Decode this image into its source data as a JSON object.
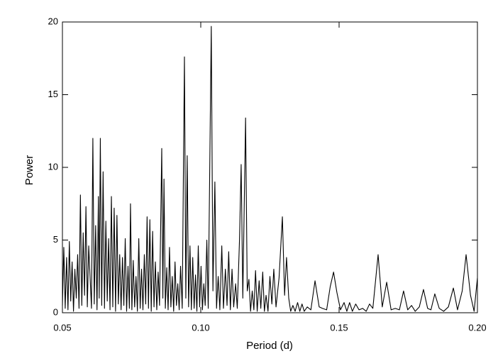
{
  "chart_data": {
    "type": "line",
    "xlabel": "Period (d)",
    "ylabel": "Power",
    "xlim": [
      0.05,
      0.2
    ],
    "xticks": [
      0.05,
      {
        "value": 0.1,
        "label": "0.10"
      },
      0.15,
      {
        "value": 0.2,
        "label": "0.20"
      }
    ],
    "ylim": [
      0,
      20
    ],
    "yticks": [
      0,
      5,
      10,
      15,
      20
    ],
    "x": [
      0.05,
      0.0505,
      0.051,
      0.0515,
      0.052,
      0.0525,
      0.053,
      0.0535,
      0.054,
      0.0545,
      0.055,
      0.0555,
      0.056,
      0.0565,
      0.057,
      0.0575,
      0.058,
      0.0585,
      0.059,
      0.0595,
      0.0605,
      0.061,
      0.0615,
      0.062,
      0.0625,
      0.063,
      0.0633,
      0.0637,
      0.0642,
      0.0647,
      0.0652,
      0.0657,
      0.0662,
      0.0667,
      0.0672,
      0.0677,
      0.0682,
      0.0687,
      0.0692,
      0.0697,
      0.0702,
      0.0707,
      0.0712,
      0.0717,
      0.0722,
      0.0727,
      0.0732,
      0.0737,
      0.0742,
      0.0746,
      0.0751,
      0.0756,
      0.0761,
      0.0766,
      0.0771,
      0.0776,
      0.0781,
      0.0786,
      0.0791,
      0.0796,
      0.0801,
      0.0806,
      0.0811,
      0.0816,
      0.0821,
      0.0826,
      0.0831,
      0.0836,
      0.0841,
      0.0846,
      0.0851,
      0.0859,
      0.0863,
      0.0867,
      0.0872,
      0.0877,
      0.0882,
      0.0887,
      0.0892,
      0.0897,
      0.0902,
      0.0907,
      0.0912,
      0.0917,
      0.0922,
      0.0927,
      0.0933,
      0.0941,
      0.0946,
      0.0951,
      0.0956,
      0.0961,
      0.0966,
      0.0971,
      0.0976,
      0.0981,
      0.0986,
      0.0991,
      0.0996,
      0.1001,
      0.1006,
      0.1011,
      0.1016,
      0.1022,
      0.1027,
      0.1038,
      0.1044,
      0.1051,
      0.1057,
      0.1063,
      0.1069,
      0.1076,
      0.1082,
      0.1089,
      0.1095,
      0.1101,
      0.1107,
      0.1113,
      0.1119,
      0.1126,
      0.1132,
      0.114,
      0.1146,
      0.1152,
      0.1162,
      0.1168,
      0.1174,
      0.118,
      0.1186,
      0.1192,
      0.1198,
      0.1204,
      0.1211,
      0.1217,
      0.1224,
      0.123,
      0.1236,
      0.1243,
      0.125,
      0.1257,
      0.1264,
      0.1272,
      0.1283,
      0.1295,
      0.1303,
      0.131,
      0.1318,
      0.1325,
      0.1333,
      0.1341,
      0.135,
      0.1358,
      0.1366,
      0.1374,
      0.1385,
      0.1398,
      0.1413,
      0.1428,
      0.144,
      0.1455,
      0.1468,
      0.148,
      0.1492,
      0.1505,
      0.1518,
      0.1528,
      0.1538,
      0.1548,
      0.156,
      0.1572,
      0.1585,
      0.1598,
      0.161,
      0.1622,
      0.1641,
      0.1656,
      0.1672,
      0.1688,
      0.1703,
      0.1718,
      0.1733,
      0.1748,
      0.1762,
      0.1775,
      0.179,
      0.1805,
      0.182,
      0.1832,
      0.1846,
      0.1862,
      0.1878,
      0.1895,
      0.1913,
      0.1928,
      0.1945,
      0.1959,
      0.1975,
      0.1988,
      0.2
    ],
    "series": [
      {
        "color": "#000000",
        "values": [
          0.5,
          4.5,
          0.3,
          3.8,
          0.2,
          4.9,
          0.8,
          3.5,
          0.1,
          3.0,
          1.0,
          4.0,
          0.3,
          8.1,
          0.5,
          5.5,
          1.2,
          7.3,
          0.4,
          4.6,
          0.3,
          12.0,
          0.6,
          6.0,
          0.2,
          8.0,
          1.0,
          12.0,
          0.5,
          9.7,
          0.3,
          6.3,
          0.8,
          5.1,
          0.2,
          8.0,
          0.4,
          7.2,
          0.1,
          6.7,
          0.6,
          4.0,
          0.2,
          3.8,
          0.5,
          5.1,
          0.1,
          3.2,
          0.3,
          7.5,
          0.2,
          3.6,
          0.4,
          2.5,
          0.1,
          5.1,
          0.3,
          3.0,
          0.2,
          4.0,
          0.6,
          6.6,
          0.3,
          6.4,
          0.1,
          5.6,
          0.4,
          3.5,
          0.2,
          2.8,
          0.5,
          11.3,
          1.0,
          9.2,
          0.3,
          3.1,
          0.2,
          4.5,
          0.4,
          2.5,
          0.1,
          3.5,
          0.5,
          2.0,
          0.2,
          3.2,
          0.3,
          17.6,
          1.0,
          10.8,
          0.4,
          4.6,
          0.2,
          3.8,
          0.3,
          2.6,
          0.1,
          4.6,
          0.4,
          3.2,
          0.2,
          2.0,
          0.5,
          5.0,
          0.3,
          19.7,
          1.5,
          9.0,
          0.3,
          2.5,
          0.2,
          4.6,
          0.3,
          3.0,
          0.5,
          4.2,
          0.2,
          3.0,
          0.4,
          2.0,
          0.3,
          5.0,
          10.2,
          1.0,
          13.4,
          1.5,
          2.3,
          0.1,
          1.5,
          0.2,
          2.9,
          0.1,
          2.2,
          0.3,
          2.8,
          0.1,
          1.2,
          0.1,
          2.5,
          0.6,
          3.0,
          0.4,
          2.4,
          6.6,
          1.2,
          3.8,
          1.0,
          0.1,
          0.5,
          0.1,
          0.7,
          0.1,
          0.6,
          0.1,
          0.4,
          0.2,
          2.2,
          0.4,
          0.3,
          0.2,
          1.8,
          2.8,
          1.4,
          0.2,
          0.7,
          0.1,
          0.7,
          0.1,
          0.6,
          0.2,
          0.3,
          0.1,
          0.6,
          0.3,
          4.0,
          0.4,
          2.1,
          0.2,
          0.3,
          0.2,
          1.5,
          0.2,
          0.5,
          0.1,
          0.4,
          1.6,
          0.3,
          0.2,
          1.3,
          0.3,
          0.1,
          0.4,
          1.7,
          0.2,
          1.5,
          4.0,
          1.2,
          0.1,
          2.4
        ]
      }
    ]
  }
}
